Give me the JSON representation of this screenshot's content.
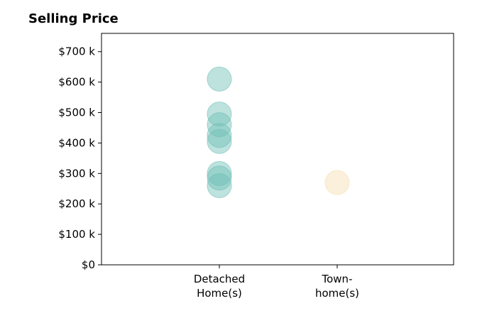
{
  "chart_data": {
    "type": "scatter",
    "title": "Selling Price",
    "xlabel": "",
    "ylabel": "",
    "categories": [
      [
        "Detached",
        "Home(s)"
      ],
      [
        "Town-",
        "home(s)"
      ]
    ],
    "ylim": [
      0,
      760000
    ],
    "y_ticks": [
      {
        "value": 0,
        "label": "$0"
      },
      {
        "value": 100000,
        "label": "$100 k"
      },
      {
        "value": 200000,
        "label": "$200 k"
      },
      {
        "value": 300000,
        "label": "$300 k"
      },
      {
        "value": 400000,
        "label": "$400 k"
      },
      {
        "value": 500000,
        "label": "$500 k"
      },
      {
        "value": 600000,
        "label": "$600 k"
      },
      {
        "value": 700000,
        "label": "$700 k"
      }
    ],
    "series": [
      {
        "category_index": 0,
        "color": "#6fbfb5",
        "values": [
          610000,
          495000,
          460000,
          425000,
          405000,
          300000,
          285000,
          260000
        ]
      },
      {
        "category_index": 1,
        "color": "#f5deb0",
        "values": [
          270000
        ]
      }
    ],
    "grid": false,
    "legend": "none"
  }
}
